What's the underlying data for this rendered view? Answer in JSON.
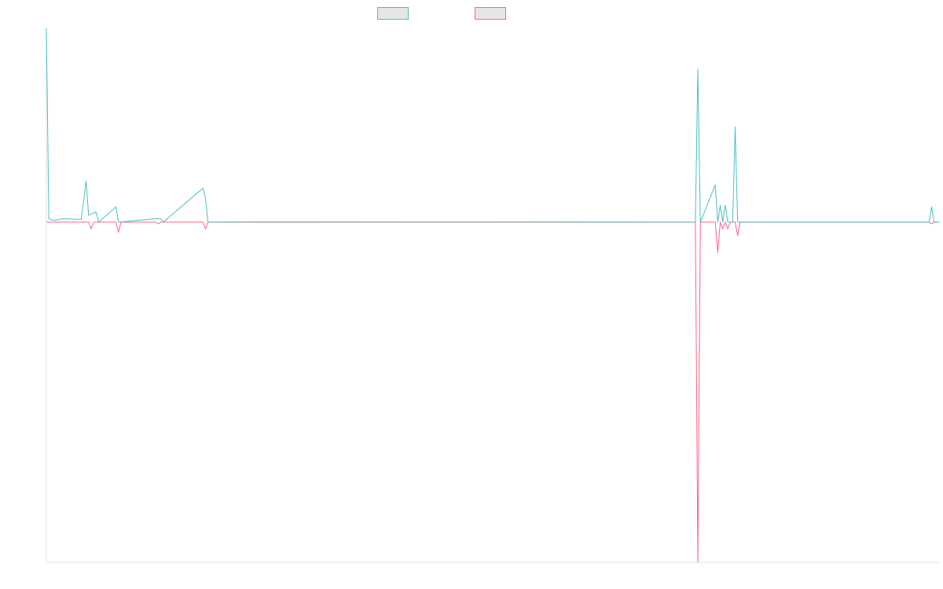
{
  "chart_data": {
    "type": "line",
    "title": "",
    "xlabel": "",
    "ylabel": "",
    "grid": false,
    "legend_position": "top-center",
    "x_count": 360,
    "ylim": [
      -100,
      57
    ],
    "series": [
      {
        "name": "",
        "color": "#4bc0c0",
        "points": [
          [
            0,
            57
          ],
          [
            1,
            1
          ],
          [
            3,
            0.5
          ],
          [
            7,
            1
          ],
          [
            14,
            0.8
          ],
          [
            16,
            12
          ],
          [
            17,
            2
          ],
          [
            20,
            3
          ],
          [
            21,
            0
          ],
          [
            28,
            4.5
          ],
          [
            29,
            0
          ],
          [
            44,
            1
          ],
          [
            46,
            1
          ],
          [
            47,
            0
          ],
          [
            63,
            10
          ],
          [
            64,
            7
          ],
          [
            65,
            0
          ],
          [
            87,
            0.1
          ],
          [
            261,
            0
          ],
          [
            262,
            45
          ],
          [
            263,
            0
          ],
          [
            269,
            11
          ],
          [
            270,
            0
          ],
          [
            271,
            5
          ],
          [
            272,
            0
          ],
          [
            273,
            5
          ],
          [
            274,
            0
          ],
          [
            276,
            0
          ],
          [
            277,
            28
          ],
          [
            278,
            0
          ],
          [
            355,
            0
          ],
          [
            356,
            4.5
          ],
          [
            357,
            0
          ],
          [
            359,
            0
          ]
        ]
      },
      {
        "name": "",
        "color": "#ff6384",
        "points": [
          [
            0,
            0
          ],
          [
            17,
            0
          ],
          [
            18,
            -2
          ],
          [
            19,
            0
          ],
          [
            28,
            0
          ],
          [
            29,
            -3
          ],
          [
            30,
            0
          ],
          [
            44,
            0
          ],
          [
            45,
            -0.5
          ],
          [
            46,
            0
          ],
          [
            63,
            0
          ],
          [
            64,
            -2
          ],
          [
            65,
            0
          ],
          [
            261,
            0
          ],
          [
            262,
            -100
          ],
          [
            263,
            0
          ],
          [
            269,
            0
          ],
          [
            270,
            -9
          ],
          [
            271,
            0
          ],
          [
            272,
            -2
          ],
          [
            273,
            0
          ],
          [
            274,
            -2
          ],
          [
            275,
            0
          ],
          [
            277,
            0
          ],
          [
            278,
            -4
          ],
          [
            279,
            0
          ],
          [
            355,
            0
          ],
          [
            356,
            -0.5
          ],
          [
            357,
            0
          ],
          [
            359,
            0
          ]
        ]
      }
    ]
  }
}
